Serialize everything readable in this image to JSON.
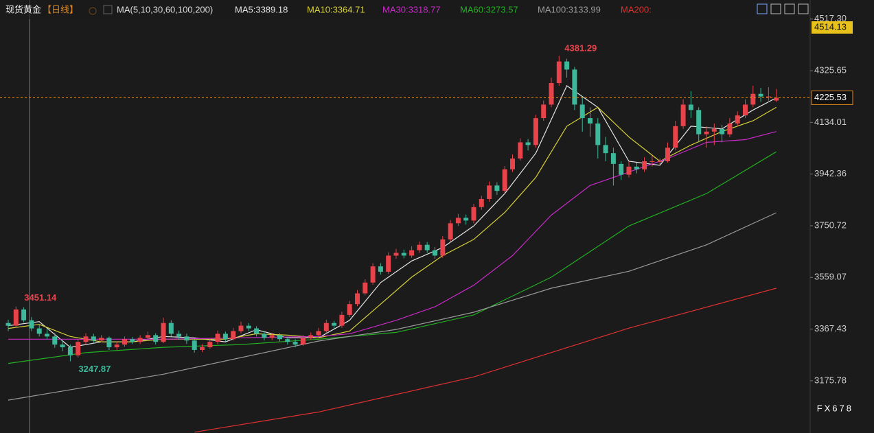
{
  "chart_data": {
    "type": "candlestick",
    "header": {
      "title": "现货黄金",
      "period": "【日线】",
      "ma_label": "MA(5,10,30,60,100,200)"
    },
    "up_color": "#e8424a",
    "down_color": "#3cb89a",
    "ylim": [
      2982,
      4588
    ],
    "yticks": [
      {
        "value": 4517.3,
        "label": "4517.30"
      },
      4325.65,
      4134.01,
      3942.36,
      3750.72,
      3559.07,
      3367.43,
      3175.78
    ],
    "marker_price": 4514.13,
    "watermark": "FX678",
    "candles": [
      [
        3390,
        3402,
        3360,
        3380
      ],
      [
        3380,
        3451.14,
        3372,
        3440
      ],
      [
        3440,
        3448,
        3392,
        3400
      ],
      [
        3400,
        3412,
        3360,
        3370
      ],
      [
        3370,
        3382,
        3340,
        3350
      ],
      [
        3350,
        3368,
        3330,
        3340
      ],
      [
        3340,
        3352,
        3298,
        3310
      ],
      [
        3310,
        3325,
        3285,
        3300
      ],
      [
        3300,
        3310,
        3247.87,
        3270
      ],
      [
        3270,
        3330,
        3262,
        3320
      ],
      [
        3320,
        3352,
        3310,
        3340
      ],
      [
        3340,
        3350,
        3315,
        3325
      ],
      [
        3325,
        3345,
        3318,
        3335
      ],
      [
        3335,
        3340,
        3290,
        3300
      ],
      [
        3300,
        3320,
        3290,
        3310
      ],
      [
        3310,
        3340,
        3302,
        3330
      ],
      [
        3330,
        3338,
        3312,
        3320
      ],
      [
        3320,
        3345,
        3312,
        3335
      ],
      [
        3335,
        3358,
        3328,
        3345
      ],
      [
        3345,
        3352,
        3310,
        3320
      ],
      [
        3320,
        3410,
        3315,
        3390
      ],
      [
        3390,
        3400,
        3340,
        3350
      ],
      [
        3350,
        3362,
        3330,
        3340
      ],
      [
        3340,
        3350,
        3312,
        3325
      ],
      [
        3325,
        3332,
        3280,
        3290
      ],
      [
        3290,
        3312,
        3282,
        3300
      ],
      [
        3300,
        3332,
        3295,
        3320
      ],
      [
        3320,
        3362,
        3312,
        3350
      ],
      [
        3350,
        3358,
        3322,
        3330
      ],
      [
        3330,
        3372,
        3325,
        3360
      ],
      [
        3360,
        3395,
        3352,
        3380
      ],
      [
        3380,
        3390,
        3360,
        3370
      ],
      [
        3370,
        3378,
        3340,
        3350
      ],
      [
        3350,
        3360,
        3325,
        3335
      ],
      [
        3335,
        3352,
        3326,
        3345
      ],
      [
        3345,
        3352,
        3322,
        3330
      ],
      [
        3330,
        3338,
        3310,
        3320
      ],
      [
        3320,
        3330,
        3300,
        3310
      ],
      [
        3310,
        3345,
        3305,
        3335
      ],
      [
        3335,
        3355,
        3328,
        3345
      ],
      [
        3345,
        3372,
        3338,
        3360
      ],
      [
        3360,
        3402,
        3352,
        3390
      ],
      [
        3390,
        3398,
        3370,
        3380
      ],
      [
        3380,
        3432,
        3372,
        3420
      ],
      [
        3420,
        3472,
        3412,
        3460
      ],
      [
        3460,
        3512,
        3452,
        3500
      ],
      [
        3500,
        3552,
        3492,
        3540
      ],
      [
        3540,
        3612,
        3532,
        3600
      ],
      [
        3600,
        3612,
        3570,
        3580
      ],
      [
        3580,
        3652,
        3572,
        3640
      ],
      [
        3640,
        3665,
        3628,
        3650
      ],
      [
        3650,
        3662,
        3630,
        3640
      ],
      [
        3640,
        3675,
        3632,
        3660
      ],
      [
        3660,
        3692,
        3650,
        3680
      ],
      [
        3680,
        3690,
        3650,
        3660
      ],
      [
        3660,
        3672,
        3628,
        3640
      ],
      [
        3640,
        3712,
        3632,
        3700
      ],
      [
        3700,
        3772,
        3692,
        3760
      ],
      [
        3760,
        3795,
        3750,
        3780
      ],
      [
        3780,
        3792,
        3755,
        3770
      ],
      [
        3770,
        3832,
        3760,
        3820
      ],
      [
        3820,
        3862,
        3810,
        3850
      ],
      [
        3850,
        3915,
        3840,
        3900
      ],
      [
        3900,
        3912,
        3865,
        3880
      ],
      [
        3880,
        3972,
        3870,
        3960
      ],
      [
        3960,
        4015,
        3950,
        4000
      ],
      [
        4000,
        4075,
        3992,
        4060
      ],
      [
        4060,
        4072,
        4030,
        4050
      ],
      [
        4050,
        4162,
        4040,
        4150
      ],
      [
        4150,
        4215,
        4140,
        4200
      ],
      [
        4200,
        4300,
        4190,
        4280
      ],
      [
        4280,
        4381.29,
        4270,
        4360
      ],
      [
        4360,
        4370,
        4300,
        4330
      ],
      [
        4330,
        4340,
        4180,
        4200
      ],
      [
        4200,
        4230,
        4100,
        4150
      ],
      [
        4150,
        4190,
        4080,
        4130
      ],
      [
        4130,
        4150,
        4000,
        4050
      ],
      [
        4050,
        4080,
        3990,
        4020
      ],
      [
        4020,
        4040,
        3900,
        3980
      ],
      [
        3980,
        3990,
        3920,
        3940
      ],
      [
        3940,
        3990,
        3930,
        3970
      ],
      [
        3970,
        3985,
        3945,
        3960
      ],
      [
        3960,
        4005,
        3950,
        3990
      ],
      [
        3990,
        4010,
        3970,
        3990
      ],
      [
        3990,
        4000,
        3975,
        3990
      ],
      [
        3990,
        4060,
        3985,
        4040
      ],
      [
        4040,
        4140,
        4030,
        4120
      ],
      [
        4120,
        4220,
        4110,
        4200
      ],
      [
        4200,
        4250,
        4150,
        4180
      ],
      [
        4180,
        4190,
        4060,
        4090
      ],
      [
        4090,
        4120,
        4040,
        4100
      ],
      [
        4100,
        4130,
        4050,
        4110
      ],
      [
        4110,
        4125,
        4060,
        4090
      ],
      [
        4090,
        4150,
        4080,
        4130
      ],
      [
        4130,
        4175,
        4120,
        4160
      ],
      [
        4160,
        4220,
        4150,
        4200
      ],
      [
        4200,
        4270,
        4190,
        4240
      ],
      [
        4240,
        4262,
        4210,
        4230
      ],
      [
        4230,
        4265,
        4215,
        4230
      ],
      [
        4215,
        4258,
        4210,
        4225.53
      ]
    ],
    "series": [
      {
        "name": "MA5:3389.18",
        "color": "#e6e6e6",
        "x": [
          0,
          4,
          8,
          12,
          16,
          20,
          24,
          28,
          32,
          36,
          40,
          44,
          48,
          52,
          56,
          60,
          64,
          68,
          72,
          76,
          80,
          84,
          88,
          92,
          96,
          99
        ],
        "values": [
          3380,
          3395,
          3300,
          3320,
          3320,
          3340,
          3335,
          3320,
          3365,
          3335,
          3335,
          3400,
          3540,
          3620,
          3670,
          3750,
          3870,
          4020,
          4270,
          4190,
          3990,
          3975,
          4120,
          4110,
          4180,
          4225
        ]
      },
      {
        "name": "MA10:3364.71",
        "color": "#d9d23a",
        "x": [
          0,
          4,
          8,
          12,
          16,
          20,
          24,
          28,
          32,
          36,
          40,
          44,
          48,
          52,
          56,
          60,
          64,
          68,
          72,
          76,
          80,
          84,
          88,
          92,
          96,
          99
        ],
        "values": [
          3370,
          3385,
          3340,
          3320,
          3320,
          3330,
          3330,
          3330,
          3350,
          3345,
          3335,
          3360,
          3460,
          3560,
          3640,
          3700,
          3800,
          3930,
          4120,
          4190,
          4080,
          3990,
          4050,
          4100,
          4140,
          4190
        ]
      },
      {
        "name": "MA30:3318.77",
        "color": "#c82ac8",
        "x": [
          0,
          10,
          20,
          30,
          40,
          44,
          50,
          55,
          60,
          65,
          70,
          75,
          80,
          85,
          90,
          95,
          99
        ],
        "values": [
          3330,
          3330,
          3330,
          3335,
          3340,
          3350,
          3400,
          3450,
          3530,
          3640,
          3790,
          3900,
          3950,
          4000,
          4060,
          4070,
          4100
        ]
      },
      {
        "name": "MA60:3273.57",
        "color": "#22b022",
        "x": [
          0,
          10,
          20,
          30,
          40,
          50,
          60,
          70,
          80,
          90,
          99
        ],
        "values": [
          3240,
          3280,
          3300,
          3310,
          3330,
          3355,
          3420,
          3560,
          3750,
          3870,
          4025
        ]
      },
      {
        "name": "MA100:3133.99",
        "color": "#9a9a9a",
        "x": [
          0,
          20,
          40,
          50,
          60,
          70,
          80,
          90,
          99
        ],
        "values": [
          3104,
          3200,
          3323,
          3366,
          3430,
          3519,
          3582,
          3680,
          3799
        ]
      },
      {
        "name": "MA200:",
        "color": "#e03030",
        "x": [
          24,
          40,
          60,
          80,
          99
        ],
        "values": [
          2985,
          3060,
          3190,
          3371,
          3519
        ]
      }
    ]
  }
}
